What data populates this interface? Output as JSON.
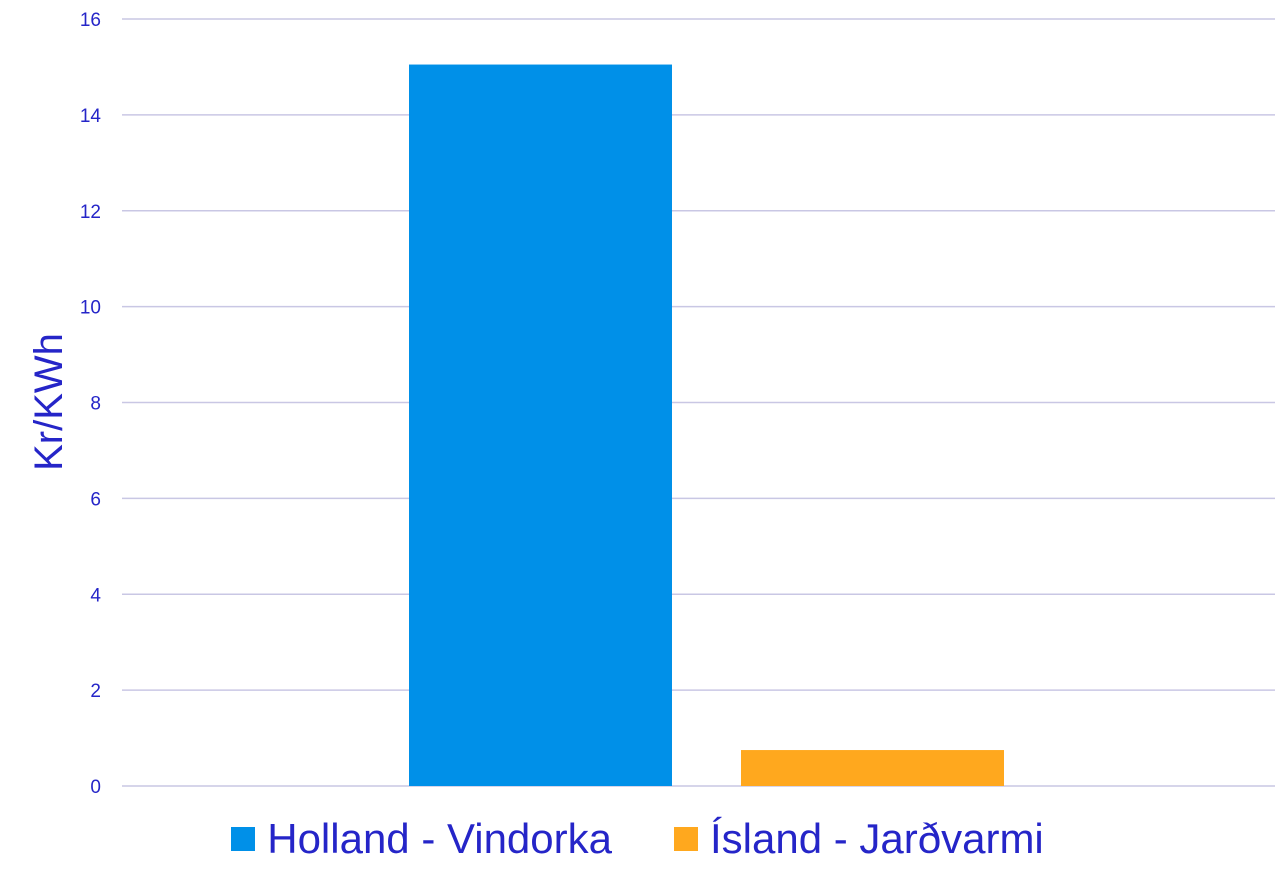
{
  "colors": {
    "text": "#2525c8",
    "grid": "#c9c7e4",
    "axis": "#c9c7e4"
  },
  "chart_data": {
    "type": "bar",
    "title": "",
    "xlabel": "",
    "ylabel": "Kr/KWh",
    "ylim": [
      0,
      16
    ],
    "yticks": [
      "0",
      "2",
      "4",
      "6",
      "8",
      "10",
      "12",
      "14",
      "16"
    ],
    "grid": true,
    "legend_position": "bottom",
    "series": [
      {
        "name": "Holland - Vindorka",
        "values": [
          15.05
        ],
        "color": "#0090e8"
      },
      {
        "name": "Ísland - Jarðvarmi",
        "values": [
          0.75
        ],
        "color": "#ffa81e"
      }
    ]
  }
}
